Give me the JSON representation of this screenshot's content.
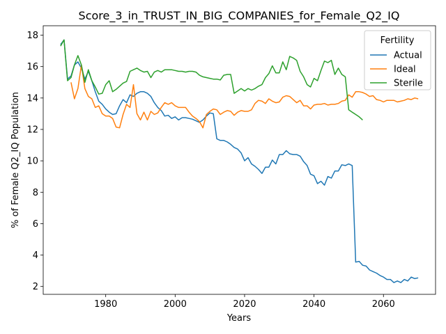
{
  "chart_data": {
    "type": "line",
    "title": "Score_3_in_TRUST_IN_BIG_COMPANIES_for_Female_Q2_IQ",
    "xlabel": "Years",
    "ylabel": "% of Female Q2_IQ Population",
    "xlim": [
      1962,
      2075
    ],
    "ylim": [
      1.5,
      18.6
    ],
    "xticks": [
      1980,
      2000,
      2020,
      2040,
      2060
    ],
    "yticks": [
      2,
      4,
      6,
      8,
      10,
      12,
      14,
      16,
      18
    ],
    "grid": false,
    "legend": {
      "title": "Fertility",
      "position": "top-right"
    },
    "series": [
      {
        "name": "Actual",
        "color": "#1f77b4",
        "x": [
          1967,
          1968,
          1969,
          1970,
          1971,
          1972,
          1973,
          1974,
          1975,
          1976,
          1977,
          1978,
          1979,
          1980,
          1981,
          1982,
          1983,
          1984,
          1985,
          1986,
          1987,
          1988,
          1989,
          1990,
          1991,
          1992,
          1993,
          1994,
          1995,
          1996,
          1997,
          1998,
          1999,
          2000,
          2001,
          2002,
          2003,
          2004,
          2005,
          2006,
          2007,
          2008,
          2009,
          2010,
          2011,
          2012,
          2013,
          2014,
          2015,
          2016,
          2017,
          2018,
          2019,
          2020,
          2021,
          2022,
          2023,
          2024,
          2025,
          2026,
          2027,
          2028,
          2029,
          2030,
          2031,
          2032,
          2033,
          2034,
          2035,
          2036,
          2037,
          2038,
          2039,
          2040,
          2041,
          2042,
          2043,
          2044,
          2045,
          2046,
          2047,
          2048,
          2049,
          2050,
          2051,
          2052,
          2053,
          2054,
          2055,
          2056,
          2057,
          2058,
          2059,
          2060,
          2061,
          2062,
          2063,
          2064,
          2065,
          2066,
          2067,
          2068,
          2069,
          2070
        ],
        "y": [
          17.4,
          17.7,
          15.2,
          15.4,
          16.1,
          16.3,
          15.9,
          15.2,
          15.7,
          15.1,
          14.4,
          13.8,
          13.6,
          13.3,
          13.1,
          12.95,
          13.0,
          13.5,
          13.9,
          13.7,
          14.2,
          14.1,
          14.3,
          14.4,
          14.4,
          14.3,
          14.1,
          13.7,
          13.4,
          13.2,
          12.85,
          12.9,
          12.7,
          12.8,
          12.6,
          12.75,
          12.75,
          12.7,
          12.65,
          12.55,
          12.45,
          12.6,
          12.85,
          13.05,
          13.0,
          11.4,
          11.3,
          11.3,
          11.2,
          11.05,
          10.85,
          10.75,
          10.5,
          10.0,
          10.2,
          9.8,
          9.65,
          9.45,
          9.2,
          9.6,
          9.6,
          10.05,
          9.8,
          10.4,
          10.4,
          10.65,
          10.45,
          10.4,
          10.4,
          10.3,
          9.95,
          9.7,
          9.15,
          9.05,
          8.55,
          8.7,
          8.45,
          9.0,
          8.9,
          9.35,
          9.35,
          9.75,
          9.7,
          9.8,
          9.7,
          3.55,
          3.6,
          3.35,
          3.3,
          3.05,
          2.95,
          2.85,
          2.7,
          2.6,
          2.45,
          2.45,
          2.25,
          2.35,
          2.25,
          2.45,
          2.35,
          2.6,
          2.5,
          2.55
        ]
      },
      {
        "name": "Ideal",
        "color": "#ff7f0e",
        "x": [
          1970,
          1971,
          1972,
          1973,
          1974,
          1975,
          1976,
          1977,
          1978,
          1979,
          1980,
          1981,
          1982,
          1983,
          1984,
          1985,
          1986,
          1987,
          1988,
          1989,
          1990,
          1991,
          1992,
          1993,
          1994,
          1995,
          1996,
          1997,
          1998,
          1999,
          2000,
          2001,
          2002,
          2003,
          2004,
          2005,
          2006,
          2007,
          2008,
          2009,
          2010,
          2011,
          2012,
          2013,
          2014,
          2015,
          2016,
          2017,
          2018,
          2019,
          2020,
          2021,
          2022,
          2023,
          2024,
          2025,
          2026,
          2027,
          2028,
          2029,
          2030,
          2031,
          2032,
          2033,
          2034,
          2035,
          2036,
          2037,
          2038,
          2039,
          2040,
          2041,
          2042,
          2043,
          2044,
          2045,
          2046,
          2047,
          2048,
          2049,
          2050,
          2051,
          2052,
          2053,
          2054,
          2055,
          2056,
          2057,
          2058,
          2059,
          2060,
          2061,
          2062,
          2063,
          2064,
          2065,
          2066,
          2067,
          2068,
          2069,
          2070
        ],
        "y": [
          15.0,
          13.95,
          14.6,
          16.1,
          14.6,
          14.1,
          13.95,
          13.4,
          13.5,
          13.0,
          12.85,
          12.85,
          12.7,
          12.15,
          12.1,
          12.95,
          13.6,
          13.4,
          14.85,
          13.0,
          12.6,
          13.1,
          12.6,
          13.15,
          12.95,
          13.05,
          13.4,
          13.7,
          13.6,
          13.7,
          13.5,
          13.4,
          13.4,
          13.4,
          13.1,
          12.85,
          12.7,
          12.5,
          12.1,
          12.95,
          13.15,
          13.3,
          13.25,
          12.95,
          13.1,
          13.2,
          13.15,
          12.9,
          13.1,
          13.2,
          13.15,
          13.15,
          13.25,
          13.65,
          13.85,
          13.8,
          13.65,
          13.95,
          13.8,
          13.7,
          13.75,
          14.05,
          14.15,
          14.1,
          13.9,
          13.7,
          13.85,
          13.5,
          13.5,
          13.3,
          13.55,
          13.6,
          13.6,
          13.65,
          13.55,
          13.6,
          13.6,
          13.65,
          13.8,
          13.85,
          14.2,
          14.05,
          14.4,
          14.4,
          14.35,
          14.25,
          14.1,
          14.15,
          13.9,
          13.85,
          13.75,
          13.85,
          13.85,
          13.85,
          13.75,
          13.8,
          13.85,
          13.95,
          13.9,
          14.0,
          13.95
        ]
      },
      {
        "name": "Sterile",
        "color": "#2ca02c",
        "x": [
          1967,
          1968,
          1969,
          1970,
          1971,
          1972,
          1973,
          1974,
          1975,
          1976,
          1977,
          1978,
          1979,
          1980,
          1981,
          1982,
          1983,
          1984,
          1985,
          1986,
          1987,
          1988,
          1989,
          1990,
          1991,
          1992,
          1993,
          1994,
          1995,
          1996,
          1997,
          1998,
          1999,
          2000,
          2001,
          2002,
          2003,
          2004,
          2005,
          2006,
          2007,
          2008,
          2009,
          2010,
          2011,
          2012,
          2013,
          2014,
          2015,
          2016,
          2017,
          2018,
          2019,
          2020,
          2021,
          2022,
          2023,
          2024,
          2025,
          2026,
          2027,
          2028,
          2029,
          2030,
          2031,
          2032,
          2033,
          2034,
          2035,
          2036,
          2037,
          2038,
          2039,
          2040,
          2041,
          2042,
          2043,
          2044,
          2045,
          2046,
          2047,
          2048,
          2049,
          2050,
          2051,
          2052,
          2053,
          2054
        ],
        "y": [
          17.3,
          17.7,
          15.1,
          15.3,
          16.1,
          16.7,
          16.1,
          15.0,
          15.8,
          15.1,
          14.7,
          14.25,
          14.3,
          14.85,
          15.1,
          14.4,
          14.55,
          14.75,
          14.95,
          15.05,
          15.7,
          15.8,
          15.9,
          15.75,
          15.65,
          15.7,
          15.3,
          15.65,
          15.75,
          15.65,
          15.8,
          15.8,
          15.8,
          15.75,
          15.7,
          15.7,
          15.65,
          15.7,
          15.7,
          15.65,
          15.45,
          15.35,
          15.3,
          15.25,
          15.2,
          15.2,
          15.15,
          15.45,
          15.5,
          15.5,
          14.3,
          14.45,
          14.6,
          14.45,
          14.6,
          14.5,
          14.6,
          14.75,
          14.85,
          15.3,
          15.55,
          16.05,
          15.6,
          15.6,
          16.3,
          15.8,
          16.65,
          16.55,
          16.4,
          15.7,
          15.35,
          14.85,
          14.7,
          15.25,
          15.1,
          15.75,
          16.35,
          16.25,
          16.4,
          15.5,
          15.9,
          15.5,
          15.35,
          13.25,
          13.1,
          12.95,
          12.8,
          12.6
        ]
      }
    ]
  }
}
